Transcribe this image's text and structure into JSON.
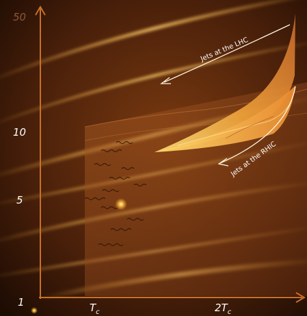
{
  "figure": {
    "y_ticks": [
      "50",
      "10",
      "5",
      "1"
    ],
    "x_ticks": [
      {
        "main": "T",
        "sub": "c"
      },
      {
        "main": "2T",
        "sub": "c"
      }
    ],
    "annotations": {
      "lhc": "Jets at the LHC",
      "rhic": "Jets at the RHIC"
    },
    "colors": {
      "background": "#2a1203",
      "streak": "#ffb13a",
      "axis": "#c8702a",
      "surface": "#ffd04a"
    }
  }
}
